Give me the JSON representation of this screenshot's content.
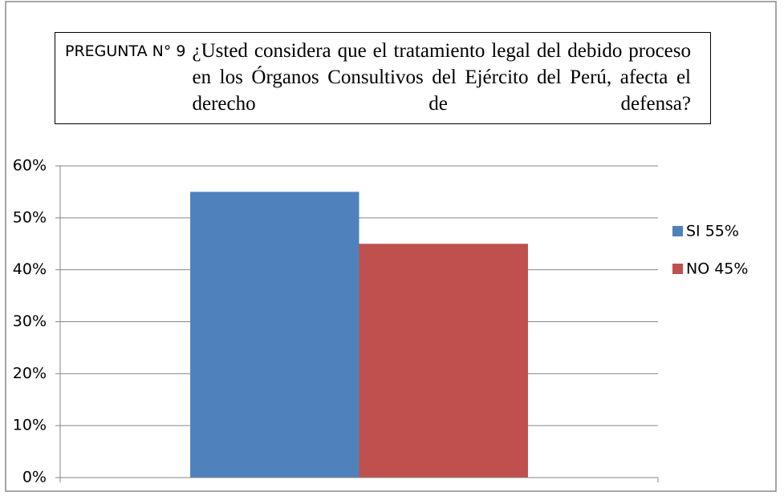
{
  "chart_data": {
    "type": "bar",
    "title_prefix": "PREGUNTA N° 9",
    "title": "¿Usted considera que el tratamiento legal del debido proceso en los Órganos Consultivos del Ejército del Perú, afecta el derecho de defensa?",
    "categories": [
      null
    ],
    "series": [
      {
        "name": "SI 55%",
        "color": "#4f81bd",
        "values": [
          55
        ]
      },
      {
        "name": "NO 45%",
        "color": "#c0504d",
        "values": [
          45
        ]
      }
    ],
    "ylim": [
      0,
      60
    ],
    "yticks": [
      {
        "value": 0,
        "label": "0%"
      },
      {
        "value": 10,
        "label": "10%"
      },
      {
        "value": 20,
        "label": "20%"
      },
      {
        "value": 30,
        "label": "30%"
      },
      {
        "value": 40,
        "label": "40%"
      },
      {
        "value": 50,
        "label": "50%"
      },
      {
        "value": 60,
        "label": "60%"
      }
    ],
    "grid": true,
    "legend": "right"
  }
}
